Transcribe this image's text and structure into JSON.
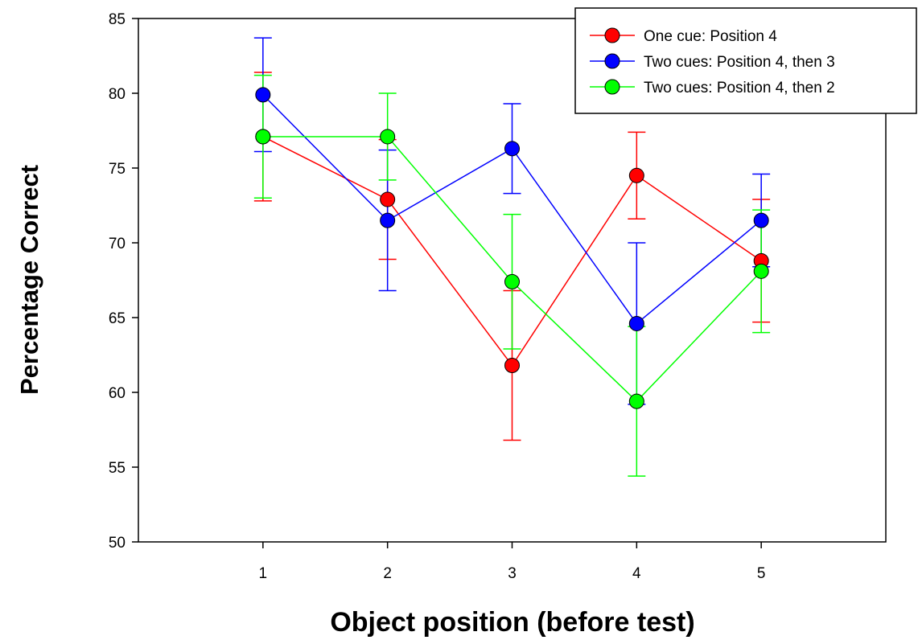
{
  "chart_data": {
    "type": "line",
    "title": "",
    "xlabel": "Object position (before test)",
    "ylabel": "Percentage Correct",
    "x": [
      1,
      2,
      3,
      4,
      5
    ],
    "x_ticks": [
      "1",
      "2",
      "3",
      "4",
      "5"
    ],
    "xlim": [
      0,
      6
    ],
    "ylim": [
      50,
      85
    ],
    "y_ticks": [
      50,
      55,
      60,
      65,
      70,
      75,
      80,
      85
    ],
    "grid": false,
    "legend_position": "top-right",
    "series": [
      {
        "name": "One cue: Position 4",
        "color": "#ff0000",
        "values": [
          77.1,
          72.9,
          61.8,
          74.5,
          68.8
        ],
        "error": [
          4.3,
          4.0,
          5.0,
          2.9,
          4.1
        ]
      },
      {
        "name": "Two cues: Position 4, then 3",
        "color": "#0000ff",
        "values": [
          79.9,
          71.5,
          76.3,
          64.6,
          71.5
        ],
        "error": [
          3.8,
          4.7,
          3.0,
          5.4,
          3.1
        ]
      },
      {
        "name": "Two cues: Position 4, then 2",
        "color": "#00ff00",
        "values": [
          77.1,
          77.1,
          67.4,
          59.4,
          68.1
        ],
        "error": [
          4.1,
          2.9,
          4.5,
          5.0,
          4.1
        ]
      }
    ]
  }
}
